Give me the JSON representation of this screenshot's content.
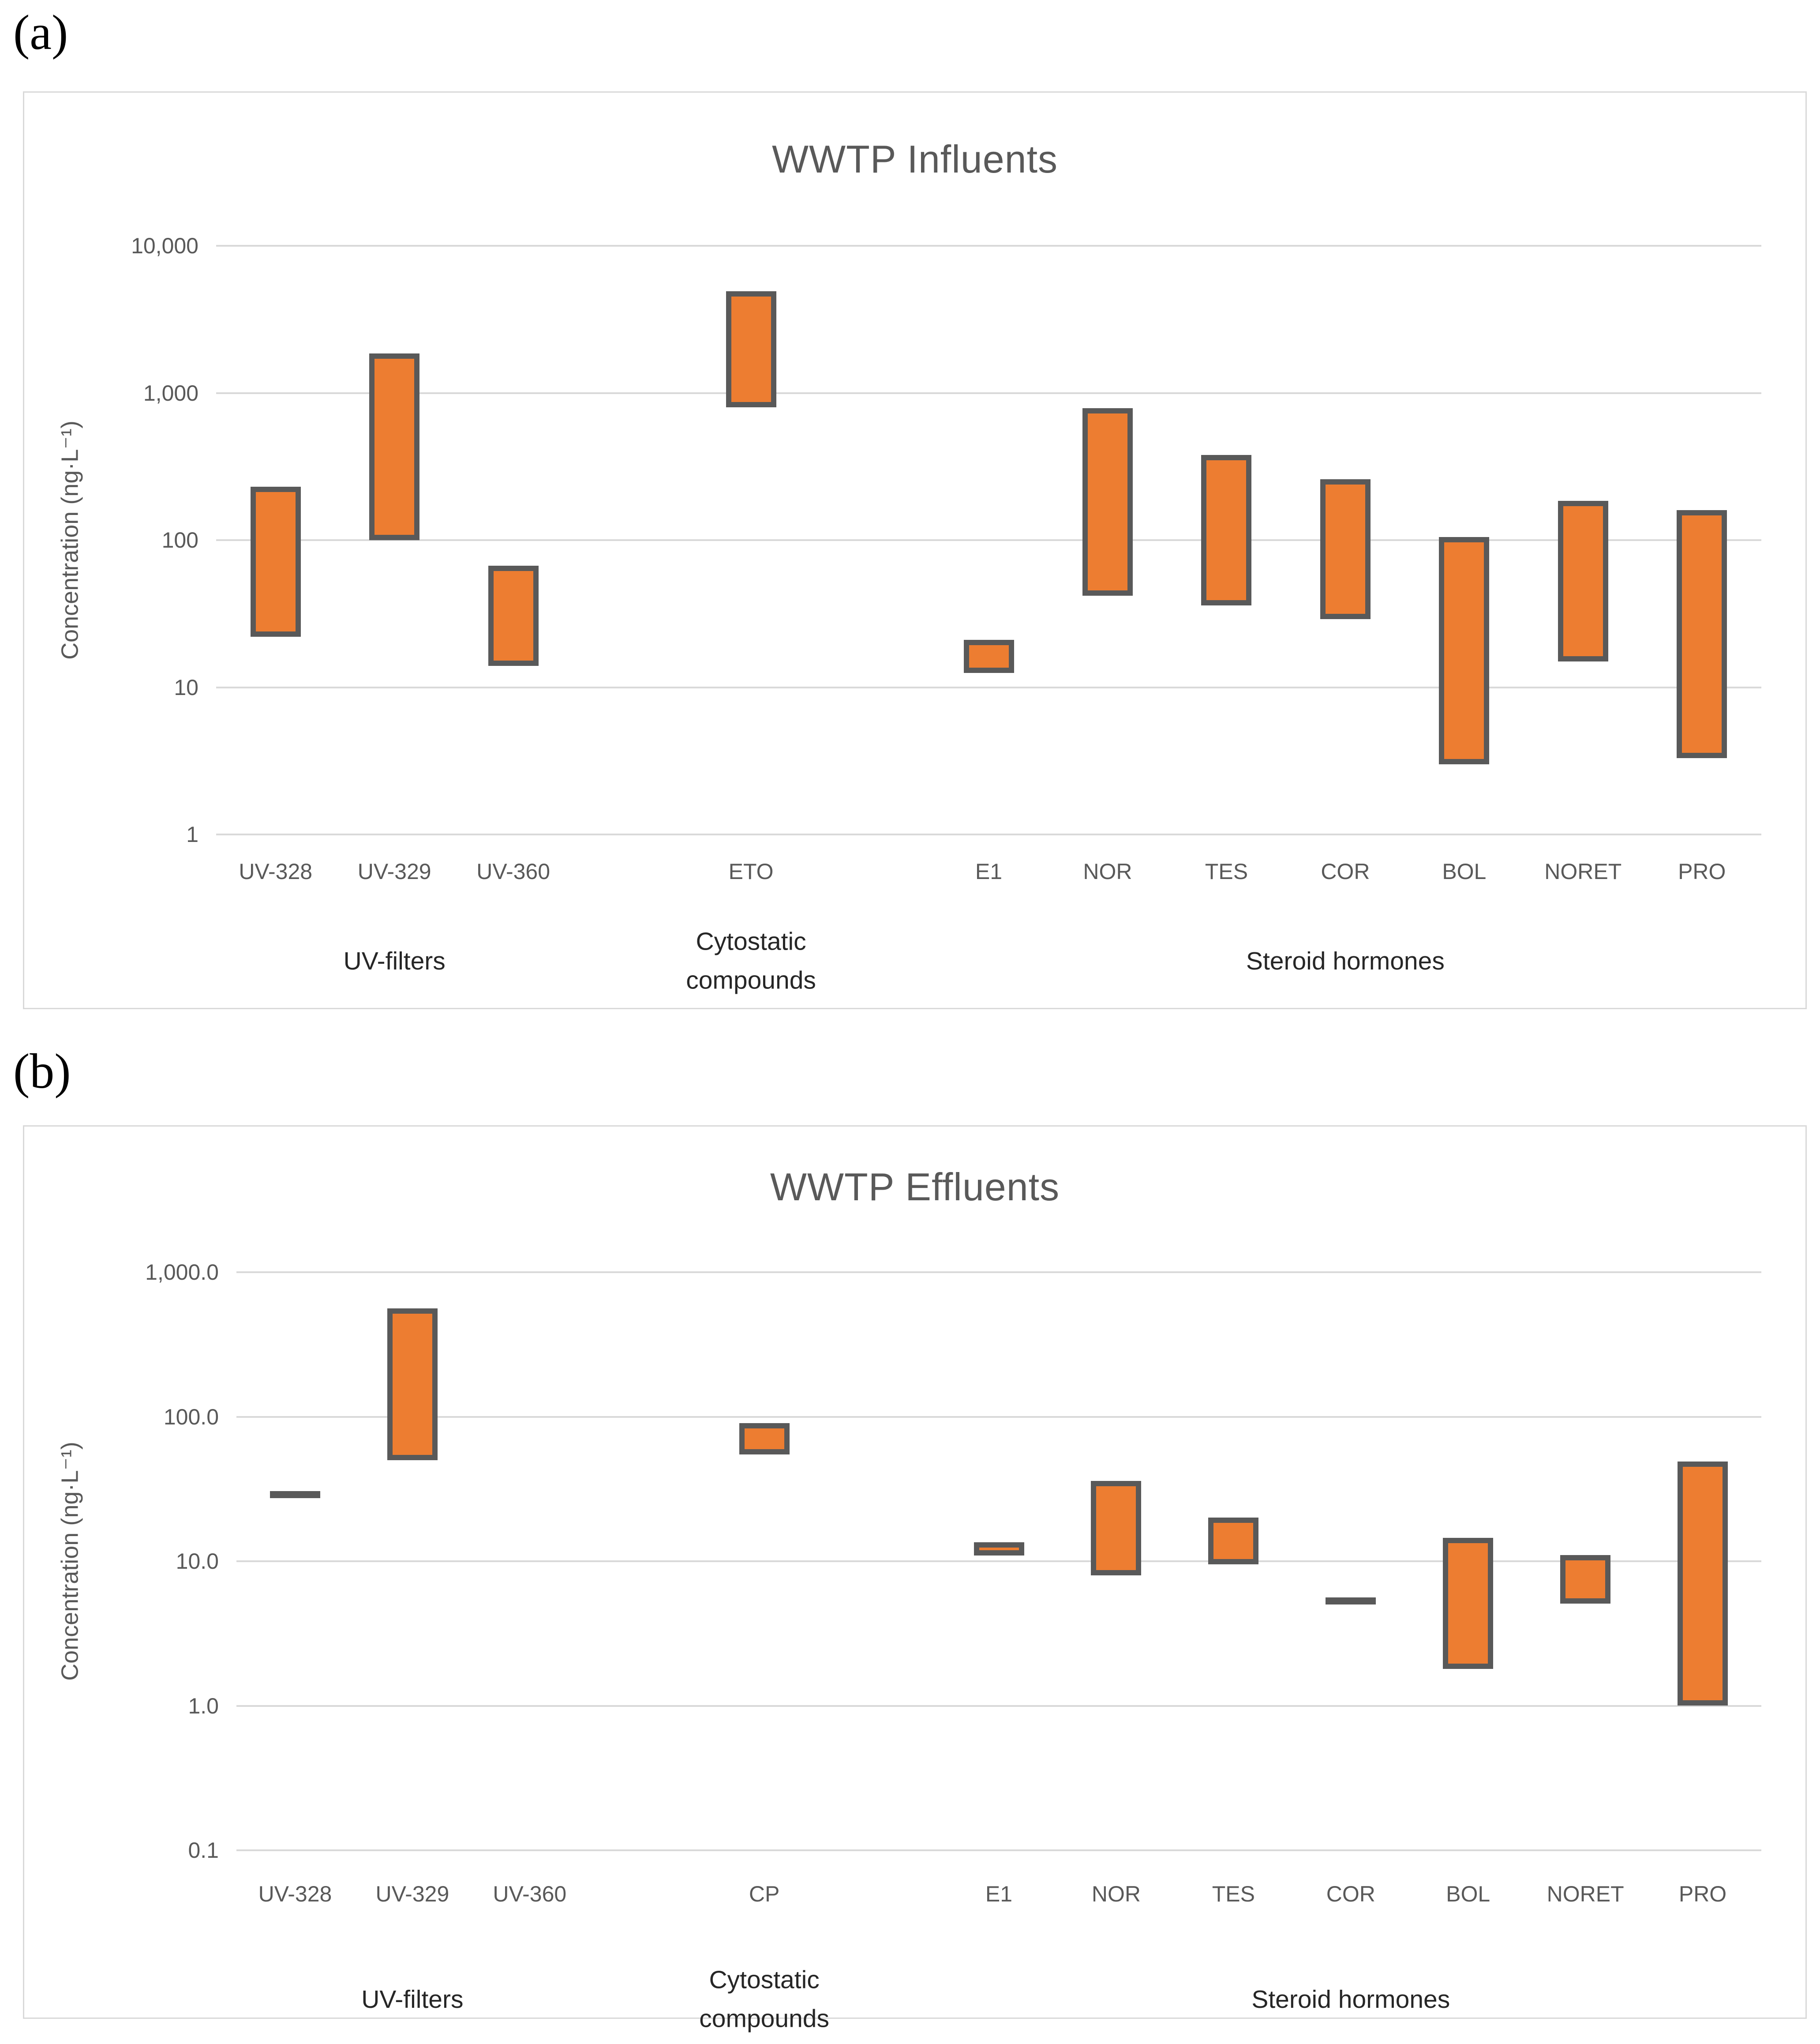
{
  "panels": [
    {
      "label": "(a)"
    },
    {
      "label": "(b)"
    }
  ],
  "colors": {
    "bar_fill": "#ed7d31",
    "bar_border": "#595959",
    "dash": "#595959",
    "gridline": "#d9d9d9",
    "frame_border": "#d9d9d9",
    "title_text": "#595959",
    "tick_text": "#595959",
    "group_label_text": "#262626"
  },
  "chart_data": [
    {
      "type": "bar",
      "subtype": "floating-range-bars",
      "title": "WWTP Influents",
      "ylabel": "Concentration (ng·L⁻¹)",
      "yscale": "log",
      "ylim": [
        1,
        10000
      ],
      "grid": true,
      "legend": false,
      "yticks": [
        {
          "label": "10,000",
          "value": 10000
        },
        {
          "label": "1,000",
          "value": 1000
        },
        {
          "label": "100",
          "value": 100
        },
        {
          "label": "10",
          "value": 10
        },
        {
          "label": "1",
          "value": 1
        }
      ],
      "categories": [
        "UV-328",
        "UV-329",
        "UV-360",
        "",
        "ETO",
        "",
        "E1",
        "NOR",
        "TES",
        "COR",
        "BOL",
        "NORET",
        "PRO"
      ],
      "groups": [
        {
          "label": "UV-filters",
          "lines": [
            "UV-filters"
          ],
          "center_slot": 1
        },
        {
          "label": "Cytostatic compounds",
          "lines": [
            "Cytostatic",
            "compounds"
          ],
          "center_slot": 4
        },
        {
          "label": "Steroid hormones",
          "lines": [
            "Steroid hormones"
          ],
          "center_slot": 9
        }
      ],
      "bars": [
        {
          "label": "UV-328",
          "slot": 0,
          "style": "bar",
          "range": [
            22,
            230
          ]
        },
        {
          "label": "UV-329",
          "slot": 1,
          "style": "bar",
          "range": [
            100,
            1850
          ]
        },
        {
          "label": "UV-360",
          "slot": 2,
          "style": "bar",
          "range": [
            14,
            67
          ]
        },
        {
          "label": "ETO",
          "slot": 4,
          "style": "bar",
          "range": [
            800,
            4900
          ]
        },
        {
          "label": "E1",
          "slot": 6,
          "style": "bar",
          "range": [
            12.5,
            21
          ]
        },
        {
          "label": "NOR",
          "slot": 7,
          "style": "bar",
          "range": [
            42,
            790
          ]
        },
        {
          "label": "TES",
          "slot": 8,
          "style": "bar",
          "range": [
            36,
            380
          ]
        },
        {
          "label": "COR",
          "slot": 9,
          "style": "bar",
          "range": [
            29,
            260
          ]
        },
        {
          "label": "BOL",
          "slot": 10,
          "style": "bar",
          "range": [
            3,
            105
          ]
        },
        {
          "label": "NORET",
          "slot": 11,
          "style": "bar",
          "range": [
            15,
            185
          ]
        },
        {
          "label": "PRO",
          "slot": 12,
          "style": "bar",
          "range": [
            3.3,
            160
          ]
        }
      ]
    },
    {
      "type": "bar",
      "subtype": "floating-range-bars",
      "title": "WWTP Effluents",
      "ylabel": "Concentration (ng·L⁻¹)",
      "yscale": "log",
      "ylim": [
        0.1,
        1000
      ],
      "grid": true,
      "legend": false,
      "yticks": [
        {
          "label": "1,000.0",
          "value": 1000
        },
        {
          "label": "100.0",
          "value": 100
        },
        {
          "label": "10.0",
          "value": 10
        },
        {
          "label": "1.0",
          "value": 1
        },
        {
          "label": "0.1",
          "value": 0.1
        }
      ],
      "categories": [
        "UV-328",
        "UV-329",
        "UV-360",
        "",
        "CP",
        "",
        "E1",
        "NOR",
        "TES",
        "COR",
        "BOL",
        "NORET",
        "PRO"
      ],
      "groups": [
        {
          "label": "UV-filters",
          "lines": [
            "UV-filters"
          ],
          "center_slot": 1
        },
        {
          "label": "Cytostatic compounds",
          "lines": [
            "Cytostatic",
            "compounds"
          ],
          "center_slot": 4
        },
        {
          "label": "Steroid hormones",
          "lines": [
            "Steroid hormones"
          ],
          "center_slot": 9
        }
      ],
      "bars": [
        {
          "label": "UV-328",
          "slot": 0,
          "style": "dash",
          "range": [
            29,
            29
          ]
        },
        {
          "label": "UV-329",
          "slot": 1,
          "style": "bar",
          "range": [
            50,
            560
          ]
        },
        {
          "label": "UV-360",
          "slot": 2,
          "style": "bar",
          "range": null
        },
        {
          "label": "CP",
          "slot": 4,
          "style": "bar",
          "range": [
            55,
            90
          ]
        },
        {
          "label": "E1",
          "slot": 6,
          "style": "bar",
          "range": [
            12.5,
            13.5
          ]
        },
        {
          "label": "NOR",
          "slot": 7,
          "style": "bar",
          "range": [
            8,
            36
          ]
        },
        {
          "label": "TES",
          "slot": 8,
          "style": "bar",
          "range": [
            9.5,
            20
          ]
        },
        {
          "label": "COR",
          "slot": 9,
          "style": "dash",
          "range": [
            5.3,
            5.3
          ]
        },
        {
          "label": "BOL",
          "slot": 10,
          "style": "bar",
          "range": [
            1.8,
            14.5
          ]
        },
        {
          "label": "NORET",
          "slot": 11,
          "style": "bar",
          "range": [
            5.1,
            11
          ]
        },
        {
          "label": "PRO",
          "slot": 12,
          "style": "bar",
          "range": [
            1.0,
            49
          ]
        }
      ]
    }
  ]
}
